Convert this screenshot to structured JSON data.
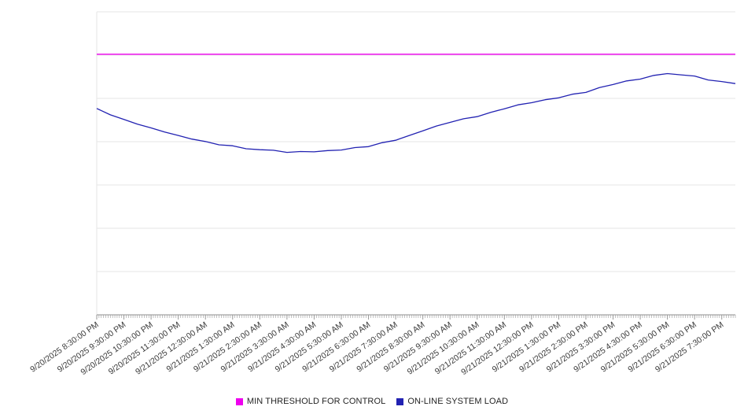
{
  "chart_data": {
    "type": "line",
    "title": "",
    "xlabel": "",
    "ylabel": "",
    "ylim": [
      0,
      100
    ],
    "grid": true,
    "legend_position": "bottom",
    "x_tick_labels": [
      "9/20/2025 8:30:00 PM",
      "9/20/2025 9:30:00 PM",
      "9/20/2025 10:30:00 PM",
      "9/20/2025 11:30:00 PM",
      "9/21/2025 12:30:00 AM",
      "9/21/2025 1:30:00 AM",
      "9/21/2025 2:30:00 AM",
      "9/21/2025 3:30:00 AM",
      "9/21/2025 4:30:00 AM",
      "9/21/2025 5:30:00 AM",
      "9/21/2025 6:30:00 AM",
      "9/21/2025 7:30:00 AM",
      "9/21/2025 8:30:00 AM",
      "9/21/2025 9:30:00 AM",
      "9/21/2025 10:30:00 AM",
      "9/21/2025 11:30:00 AM",
      "9/21/2025 12:30:00 PM",
      "9/21/2025 1:30:00 PM",
      "9/21/2025 2:30:00 PM",
      "9/21/2025 3:30:00 PM",
      "9/21/2025 4:30:00 PM",
      "9/21/2025 5:30:00 PM",
      "9/21/2025 6:30:00 PM",
      "9/21/2025 7:30:00 PM"
    ],
    "series": [
      {
        "name": "MIN THRESHOLD FOR CONTROL",
        "type": "constant-threshold",
        "color": "#ee00ee",
        "value": 86.0
      },
      {
        "name": "ON-LINE SYSTEM LOAD",
        "type": "line",
        "color": "#2222b2",
        "interval_minutes": 30,
        "values": [
          68.1,
          66.0,
          64.5,
          62.9,
          61.7,
          60.3,
          59.2,
          58.0,
          57.2,
          56.1,
          55.8,
          54.8,
          54.5,
          54.3,
          53.6,
          53.9,
          53.8,
          54.2,
          54.4,
          55.2,
          55.5,
          56.8,
          57.6,
          59.2,
          60.7,
          62.3,
          63.5,
          64.7,
          65.4,
          66.8,
          68.0,
          69.3,
          70.0,
          71.0,
          71.6,
          72.8,
          73.4,
          75.0,
          76.0,
          77.2,
          77.8,
          79.0,
          79.6,
          79.2,
          78.8,
          77.5,
          77.0,
          76.3
        ]
      }
    ],
    "colors": {
      "grid_line": "#e6e6e6",
      "axis_line": "#8c8c8c",
      "tick_mark": "#9a9a9a",
      "tick_label": "#3a3a3a",
      "background": "#ffffff"
    }
  }
}
